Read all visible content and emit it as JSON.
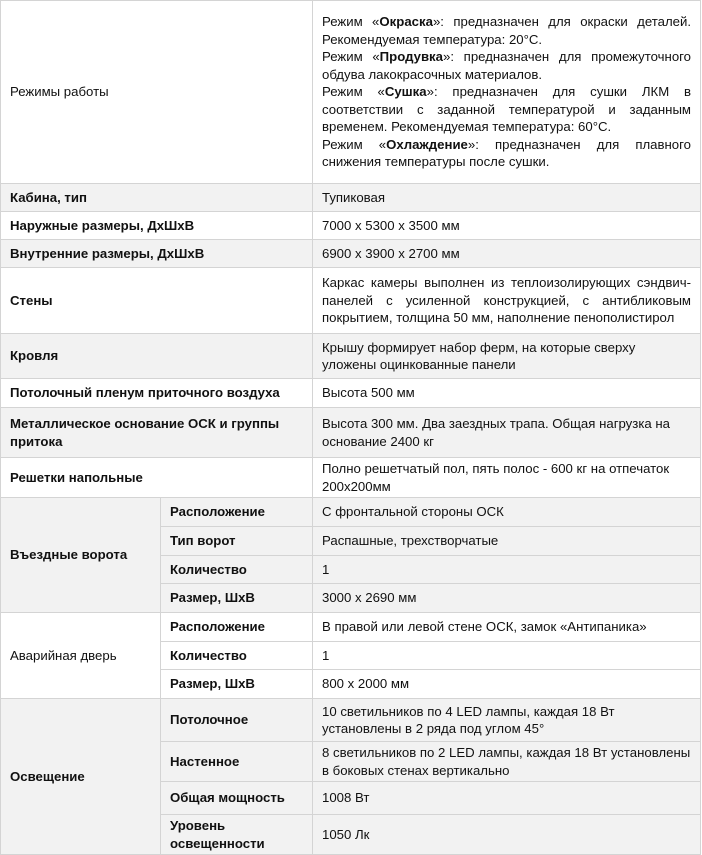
{
  "rows": {
    "modes": {
      "label": "Режимы работы",
      "lines": [
        {
          "pre": "Режим «",
          "name": "Окраска",
          "post": "»: предназначен для окраски деталей. Рекомендуемая температура: 20°С."
        },
        {
          "pre": "Режим «",
          "name": "Продувка",
          "post": "»: предназначен для промежуточного обдува лакокрасочных материалов."
        },
        {
          "pre": "Режим «",
          "name": "Сушка",
          "post": "»: предназначен для сушки ЛКМ в соответствии с заданной температурой и заданным временем. Рекомендуемая температура: 60°С."
        },
        {
          "pre": "Режим «",
          "name": "Охлаждение",
          "post": "»: предназначен для плавного снижения температуры после сушки."
        }
      ]
    },
    "cabin": {
      "label": "Кабина, тип",
      "value": "Тупиковая"
    },
    "outer": {
      "label": "Наружные размеры, ДхШхВ",
      "value": "7000 х 5300 х 3500 мм"
    },
    "inner": {
      "label": "Внутренние размеры, ДхШхВ",
      "value": "6900 х 3900 х 2700 мм"
    },
    "walls": {
      "label": "Стены",
      "value": "Каркас камеры выполнен из теплоизолирующих сэндвич-панелей с усиленной конструкцией, с антибликовым покрытием, толщина 50 мм, наполнение пенополистирол"
    },
    "roof": {
      "label": "Кровля",
      "value": "Крышу формирует набор ферм, на которые сверху уложены оцинкованные панели"
    },
    "plenum": {
      "label": "Потолочный пленум приточного воздуха",
      "value": "Высота 500 мм"
    },
    "base": {
      "label": "Металлическое основание ОСК и группы притока",
      "value": "Высота 300 мм. Два заездных трапа. Общая нагрузка на основание 2400 кг"
    },
    "grates": {
      "label": "Решетки напольные",
      "value": "Полно решетчатый пол, пять полос - 600 кг на отпечаток 200х200мм"
    },
    "gate": {
      "label": "Въездные ворота",
      "items": [
        {
          "k": "Расположение",
          "v": "С фронтальной стороны ОСК"
        },
        {
          "k": "Тип ворот",
          "v": "Распашные, трехстворчатые"
        },
        {
          "k": "Количество",
          "v": "1"
        },
        {
          "k": "Размер, ШхВ",
          "v": "3000 х 2690 мм"
        }
      ]
    },
    "door": {
      "label": "Аварийная дверь",
      "items": [
        {
          "k": "Расположение",
          "v": "В правой или левой стене ОСК, замок «Антипаника»"
        },
        {
          "k": "Количество",
          "v": "1"
        },
        {
          "k": "Размер, ШхВ",
          "v": "800 х 2000 мм"
        }
      ]
    },
    "light": {
      "label": "Освещение",
      "items": [
        {
          "k": "Потолочное",
          "v": "10 светильников по 4 LED лампы, каждая 18 Вт установлены в 2 ряда под углом 45°"
        },
        {
          "k": "Настенное",
          "v": "8 светильников по 2 LED лампы, каждая 18 Вт установлены в боковых стенах вертикально"
        },
        {
          "k": "Общая мощность",
          "v": "1008 Вт"
        },
        {
          "k": "Уровень освещенности",
          "v": "1050 Лк"
        }
      ]
    }
  },
  "colors": {
    "stripe": "#f2f2f2",
    "border": "#d4d4d4"
  }
}
